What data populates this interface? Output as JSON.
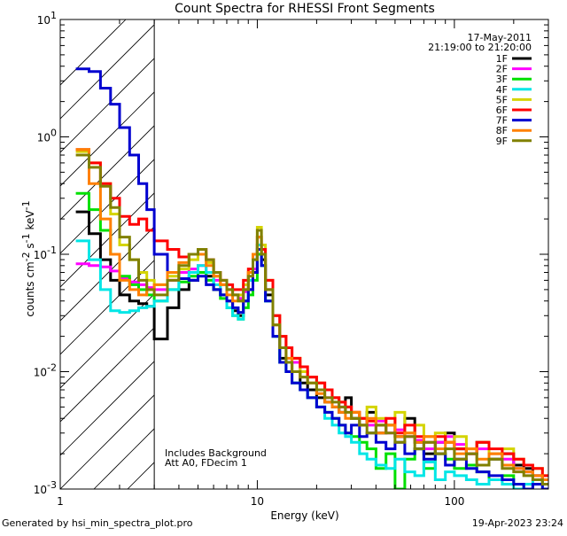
{
  "chart_data": {
    "type": "line",
    "title": "Count Spectra for RHESSI Front Segments",
    "xlabel": "Energy (keV)",
    "ylabel_parts": {
      "main": "counts cm",
      "e1": "-2",
      "mid": " s",
      "e2": "-1",
      "end": " keV",
      "e3": "-1"
    },
    "xscale": "log",
    "yscale": "log",
    "xlim": [
      1,
      300
    ],
    "ylim": [
      0.001,
      10
    ],
    "x_ticks_major": [
      {
        "value": 1,
        "label": "1"
      },
      {
        "value": 10,
        "label": "10"
      },
      {
        "value": 100,
        "label": "100"
      }
    ],
    "y_ticks_major": [
      {
        "value": 10,
        "label": "10",
        "exp": "1"
      },
      {
        "value": 1,
        "label": "10",
        "exp": "0"
      },
      {
        "value": 0.1,
        "label": "10",
        "exp": "-1"
      },
      {
        "value": 0.01,
        "label": "10",
        "exp": "-2"
      },
      {
        "value": 0.001,
        "label": "10",
        "exp": "-3"
      }
    ],
    "hatched_region_keV": [
      1,
      3
    ],
    "date": "17-May-2011",
    "time_range": "21:19:00 to 21:20:00",
    "annotations": [
      "Includes Background",
      "Att A0, FDecim 1"
    ],
    "bins": [
      1.2,
      1.4,
      1.6,
      1.8,
      2.0,
      2.25,
      2.5,
      2.75,
      3.0,
      3.5,
      4.0,
      4.5,
      5.0,
      5.5,
      6.0,
      6.5,
      7.0,
      7.5,
      8.0,
      8.5,
      9.0,
      9.5,
      10.0,
      10.5,
      11.0,
      12.0,
      13.0,
      14.0,
      15.0,
      16.5,
      18.0,
      20.0,
      22.0,
      24.0,
      26.0,
      28.0,
      30.0,
      33.0,
      36.0,
      40.0,
      45.0,
      50.0,
      56.0,
      63.0,
      70.0,
      80.0,
      90.0,
      100.0,
      115.0,
      130.0,
      150.0,
      175.0,
      200.0,
      225.0,
      250.0,
      280.0
    ],
    "series": [
      {
        "name": "1F",
        "color": "#000000",
        "values": [
          0.23,
          0.15,
          0.09,
          0.06,
          0.045,
          0.04,
          0.038,
          0.036,
          0.019,
          0.035,
          0.05,
          0.06,
          0.07,
          0.065,
          0.05,
          0.045,
          0.04,
          0.033,
          0.03,
          0.04,
          0.05,
          0.07,
          0.12,
          0.09,
          0.045,
          0.02,
          0.013,
          0.012,
          0.01,
          0.008,
          0.007,
          0.006,
          0.0055,
          0.005,
          0.0045,
          0.006,
          0.004,
          0.0035,
          0.0045,
          0.003,
          0.0035,
          0.0028,
          0.004,
          0.0025,
          0.002,
          0.0025,
          0.003,
          0.0022,
          0.002,
          0.0025,
          0.0018,
          0.002,
          0.0016,
          0.0015,
          0.0013,
          0.0012
        ]
      },
      {
        "name": "2F",
        "color": "#ff00ff",
        "values": [
          0.083,
          0.08,
          0.078,
          0.072,
          0.062,
          0.058,
          0.055,
          0.052,
          0.05,
          0.06,
          0.07,
          0.075,
          0.08,
          0.07,
          0.06,
          0.055,
          0.05,
          0.045,
          0.042,
          0.048,
          0.06,
          0.075,
          0.1,
          0.08,
          0.05,
          0.03,
          0.02,
          0.016,
          0.012,
          0.01,
          0.009,
          0.008,
          0.006,
          0.006,
          0.005,
          0.005,
          0.0045,
          0.004,
          0.0035,
          0.0038,
          0.003,
          0.0032,
          0.0028,
          0.0026,
          0.0022,
          0.0025,
          0.0028,
          0.0024,
          0.002,
          0.0022,
          0.002,
          0.0018,
          0.0015,
          0.0014,
          0.0013,
          0.0011
        ]
      },
      {
        "name": "3F",
        "color": "#00e000",
        "values": [
          0.33,
          0.24,
          0.16,
          0.1,
          0.065,
          0.055,
          0.05,
          0.045,
          0.04,
          0.05,
          0.058,
          0.065,
          0.07,
          0.06,
          0.05,
          0.042,
          0.035,
          0.03,
          0.028,
          0.035,
          0.045,
          0.06,
          0.1,
          0.08,
          0.04,
          0.02,
          0.012,
          0.01,
          0.008,
          0.007,
          0.006,
          0.005,
          0.0045,
          0.004,
          0.0035,
          0.003,
          0.0028,
          0.0025,
          0.0022,
          0.0015,
          0.002,
          0.001,
          0.0018,
          0.0022,
          0.0015,
          0.002,
          0.0018,
          0.0015,
          0.0016,
          0.0014,
          0.0012,
          0.0013,
          0.0011,
          0.001,
          0.0011,
          0.0012
        ]
      },
      {
        "name": "4F",
        "color": "#00e6e6",
        "values": [
          0.13,
          0.09,
          0.05,
          0.033,
          0.032,
          0.033,
          0.035,
          0.036,
          0.04,
          0.05,
          0.062,
          0.07,
          0.08,
          0.07,
          0.055,
          0.045,
          0.035,
          0.03,
          0.028,
          0.04,
          0.06,
          0.09,
          0.12,
          0.08,
          0.04,
          0.02,
          0.012,
          0.01,
          0.008,
          0.007,
          0.006,
          0.005,
          0.004,
          0.0035,
          0.003,
          0.0028,
          0.0025,
          0.002,
          0.0018,
          0.0016,
          0.0015,
          0.0018,
          0.0014,
          0.0013,
          0.0017,
          0.0012,
          0.0014,
          0.0013,
          0.0012,
          0.0011,
          0.0012,
          0.0011,
          0.001,
          0.0011,
          0.0012,
          0.001
        ]
      },
      {
        "name": "5F",
        "color": "#d4d400",
        "values": [
          0.75,
          0.6,
          0.4,
          0.22,
          0.12,
          0.09,
          0.07,
          0.06,
          0.055,
          0.065,
          0.075,
          0.09,
          0.1,
          0.085,
          0.065,
          0.055,
          0.05,
          0.045,
          0.045,
          0.055,
          0.07,
          0.1,
          0.17,
          0.12,
          0.06,
          0.03,
          0.02,
          0.016,
          0.013,
          0.01,
          0.009,
          0.008,
          0.007,
          0.006,
          0.0055,
          0.005,
          0.0045,
          0.004,
          0.005,
          0.004,
          0.0035,
          0.0045,
          0.003,
          0.0035,
          0.0028,
          0.003,
          0.0025,
          0.0028,
          0.0022,
          0.0025,
          0.002,
          0.0022,
          0.0018,
          0.0016,
          0.0015,
          0.0013
        ]
      },
      {
        "name": "6F",
        "color": "#ff0000",
        "values": [
          0.78,
          0.6,
          0.4,
          0.3,
          0.21,
          0.18,
          0.2,
          0.16,
          0.13,
          0.11,
          0.095,
          0.1,
          0.11,
          0.09,
          0.07,
          0.06,
          0.055,
          0.05,
          0.05,
          0.06,
          0.075,
          0.1,
          0.14,
          0.11,
          0.06,
          0.03,
          0.02,
          0.016,
          0.013,
          0.011,
          0.009,
          0.008,
          0.007,
          0.006,
          0.0055,
          0.005,
          0.0045,
          0.004,
          0.0038,
          0.0035,
          0.004,
          0.003,
          0.0035,
          0.0028,
          0.0025,
          0.0028,
          0.0025,
          0.0022,
          0.002,
          0.0025,
          0.0022,
          0.002,
          0.0018,
          0.0016,
          0.0015,
          0.0013
        ]
      },
      {
        "name": "7F",
        "color": "#0000d0",
        "values": [
          3.8,
          3.6,
          2.6,
          1.9,
          1.2,
          0.7,
          0.4,
          0.24,
          0.1,
          0.07,
          0.062,
          0.06,
          0.065,
          0.055,
          0.05,
          0.045,
          0.04,
          0.035,
          0.032,
          0.04,
          0.05,
          0.07,
          0.11,
          0.08,
          0.04,
          0.02,
          0.012,
          0.01,
          0.008,
          0.007,
          0.006,
          0.005,
          0.0045,
          0.004,
          0.0035,
          0.003,
          0.0035,
          0.0028,
          0.003,
          0.0025,
          0.0022,
          0.0025,
          0.002,
          0.0022,
          0.0018,
          0.002,
          0.0016,
          0.0018,
          0.0015,
          0.0014,
          0.0013,
          0.0012,
          0.0011,
          0.001,
          0.0011,
          0.001
        ]
      },
      {
        "name": "8F",
        "color": "#ff8000",
        "values": [
          0.78,
          0.4,
          0.2,
          0.1,
          0.06,
          0.05,
          0.045,
          0.05,
          0.055,
          0.07,
          0.085,
          0.1,
          0.1,
          0.08,
          0.065,
          0.055,
          0.045,
          0.04,
          0.04,
          0.05,
          0.07,
          0.1,
          0.14,
          0.1,
          0.05,
          0.025,
          0.016,
          0.013,
          0.01,
          0.009,
          0.008,
          0.0065,
          0.0055,
          0.005,
          0.0045,
          0.004,
          0.0045,
          0.0035,
          0.004,
          0.003,
          0.0035,
          0.0028,
          0.003,
          0.0025,
          0.0028,
          0.0022,
          0.0025,
          0.002,
          0.0022,
          0.0018,
          0.002,
          0.0016,
          0.0015,
          0.0014,
          0.0013,
          0.0012
        ]
      },
      {
        "name": "9F",
        "color": "#808000",
        "values": [
          0.7,
          0.55,
          0.38,
          0.25,
          0.14,
          0.09,
          0.06,
          0.05,
          0.045,
          0.06,
          0.08,
          0.1,
          0.11,
          0.09,
          0.07,
          0.06,
          0.05,
          0.045,
          0.04,
          0.05,
          0.065,
          0.09,
          0.16,
          0.1,
          0.05,
          0.025,
          0.016,
          0.012,
          0.01,
          0.009,
          0.008,
          0.007,
          0.006,
          0.0055,
          0.005,
          0.0045,
          0.004,
          0.0035,
          0.003,
          0.0035,
          0.003,
          0.0025,
          0.0028,
          0.0022,
          0.0025,
          0.002,
          0.0022,
          0.0018,
          0.002,
          0.0016,
          0.0018,
          0.0015,
          0.0014,
          0.0013,
          0.0012,
          0.0011
        ]
      }
    ]
  },
  "footer": {
    "generated_by": "Generated by hsi_min_spectra_plot.pro",
    "timestamp": "19-Apr-2023 23:24"
  }
}
